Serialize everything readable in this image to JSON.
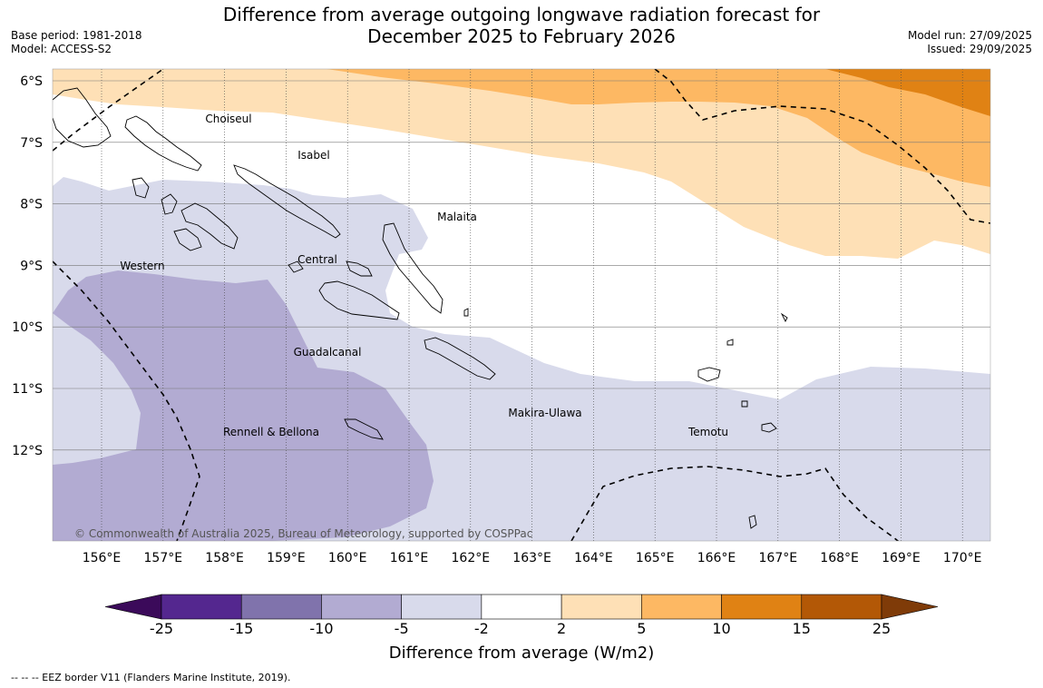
{
  "title_line1": "Difference from average outgoing longwave radiation forecast for",
  "title_line2": "December 2025 to February 2026",
  "base_period": "Base period: 1981-2018",
  "model": "Model: ACCESS-S2",
  "model_run": "Model run: 27/09/2025",
  "issued": "Issued: 29/09/2025",
  "copyright": "© Commonwealth of Australia 2025, Bureau of Meteorology, supported by COSPPac",
  "lon_ticks": [
    "156°E",
    "157°E",
    "158°E",
    "159°E",
    "160°E",
    "161°E",
    "162°E",
    "163°E",
    "164°E",
    "165°E",
    "166°E",
    "167°E",
    "168°E",
    "169°E",
    "170°E"
  ],
  "lat_ticks": [
    "6°S",
    "7°S",
    "8°S",
    "9°S",
    "10°S",
    "11°S",
    "12°S"
  ],
  "province_labels": [
    "Choiseul",
    "Isabel",
    "Malaita",
    "Western",
    "Central",
    "Guadalcanal",
    "Makira-Ulawa",
    "Rennell & Bellona",
    "Temotu"
  ],
  "colorbar": {
    "title": "Difference from average (W/m2)",
    "labels": [
      "-25",
      "-15",
      "-10",
      "-5",
      "-2",
      "2",
      "5",
      "10",
      "15",
      "25"
    ],
    "colors": [
      "#3b0a5a",
      "#54278f",
      "#8073ac",
      "#b2abd2",
      "#d8daeb",
      "#ffffff",
      "#fee0b6",
      "#fdb863",
      "#e08214",
      "#b35806",
      "#7f3b08"
    ]
  },
  "footnote": "--  --  -- EEZ border V11 (Flanders Marine Institute, 2019)."
}
